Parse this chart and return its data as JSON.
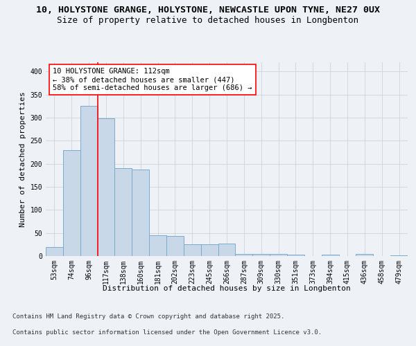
{
  "title_line1": "10, HOLYSTONE GRANGE, HOLYSTONE, NEWCASTLE UPON TYNE, NE27 0UX",
  "title_line2": "Size of property relative to detached houses in Longbenton",
  "xlabel": "Distribution of detached houses by size in Longbenton",
  "ylabel": "Number of detached properties",
  "categories": [
    "53sqm",
    "74sqm",
    "96sqm",
    "117sqm",
    "138sqm",
    "160sqm",
    "181sqm",
    "202sqm",
    "223sqm",
    "245sqm",
    "266sqm",
    "287sqm",
    "309sqm",
    "330sqm",
    "351sqm",
    "373sqm",
    "394sqm",
    "415sqm",
    "436sqm",
    "458sqm",
    "479sqm"
  ],
  "values": [
    20,
    230,
    325,
    298,
    190,
    188,
    45,
    44,
    26,
    26,
    27,
    5,
    5,
    5,
    3,
    0,
    3,
    0,
    5,
    0,
    2
  ],
  "bar_color": "#c8d8e8",
  "bar_edge_color": "#7aaacc",
  "vline_color": "red",
  "annotation_text": "10 HOLYSTONE GRANGE: 112sqm\n← 38% of detached houses are smaller (447)\n58% of semi-detached houses are larger (686) →",
  "annotation_box_color": "white",
  "annotation_box_edge": "red",
  "ylim": [
    0,
    420
  ],
  "yticks": [
    0,
    50,
    100,
    150,
    200,
    250,
    300,
    350,
    400
  ],
  "footer_line1": "Contains HM Land Registry data © Crown copyright and database right 2025.",
  "footer_line2": "Contains public sector information licensed under the Open Government Licence v3.0.",
  "bg_color": "#eef2f7",
  "plot_bg_color": "#eef2f7",
  "title_fontsize": 9.5,
  "subtitle_fontsize": 9,
  "axis_label_fontsize": 8,
  "tick_fontsize": 7,
  "annotation_fontsize": 7.5,
  "footer_fontsize": 6.5
}
